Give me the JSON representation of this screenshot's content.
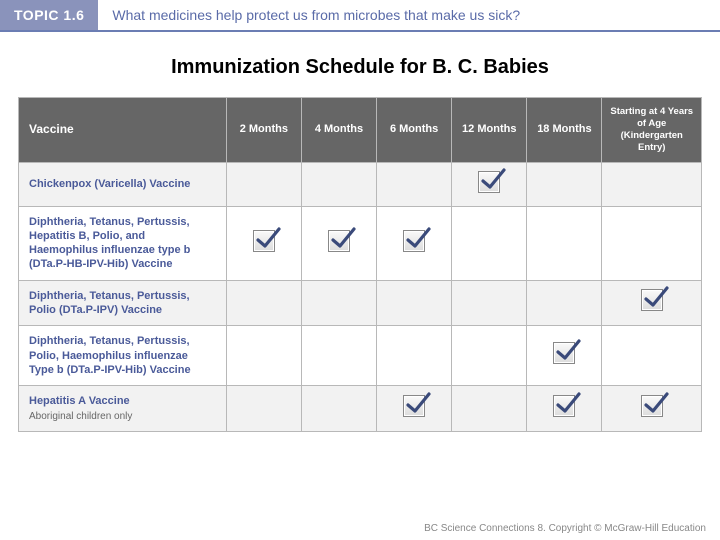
{
  "topic": {
    "badge": "TOPIC 1.6",
    "question": "What medicines help protect us from microbes that make us sick?"
  },
  "title": "Immunization Schedule for B. C. Babies",
  "columns": {
    "vaccine": "Vaccine",
    "m2": "2 Months",
    "m4": "4 Months",
    "m6": "6 Months",
    "m12": "12 Months",
    "m18": "18 Months",
    "kinder": "Starting at 4 Years of Age (Kindergarten Entry)"
  },
  "rows": [
    {
      "name": "Chickenpox (Varicella) Vaccine",
      "subnote": "",
      "checks": {
        "m2": false,
        "m4": false,
        "m6": false,
        "m12": true,
        "m18": false,
        "kinder": false
      }
    },
    {
      "name": "Diphtheria, Tetanus, Pertussis, Hepatitis B, Polio, and Haemophilus influenzae type b (DTa.P-HB-IPV-Hib) Vaccine",
      "subnote": "",
      "checks": {
        "m2": true,
        "m4": true,
        "m6": true,
        "m12": false,
        "m18": false,
        "kinder": false
      }
    },
    {
      "name": "Diphtheria, Tetanus, Pertussis, Polio (DTa.P-IPV) Vaccine",
      "subnote": "",
      "checks": {
        "m2": false,
        "m4": false,
        "m6": false,
        "m12": false,
        "m18": false,
        "kinder": true
      }
    },
    {
      "name": "Diphtheria, Tetanus, Pertussis, Polio, Haemophilus influenzae Type b (DTa.P-IPV-Hib) Vaccine",
      "subnote": "",
      "checks": {
        "m2": false,
        "m4": false,
        "m6": false,
        "m12": false,
        "m18": true,
        "kinder": false
      }
    },
    {
      "name": "Hepatitis A Vaccine",
      "subnote": "Aboriginal children only",
      "checks": {
        "m2": false,
        "m4": false,
        "m6": true,
        "m12": false,
        "m18": true,
        "kinder": true
      }
    }
  ],
  "footer": "BC Science Connections 8. Copyright © McGraw-Hill Education",
  "colors": {
    "topic_badge_bg": "#8a93bb",
    "topic_text": "#5a6ba8",
    "header_bg": "#666666",
    "vaccine_name": "#4a5a99",
    "row_even_bg": "#f2f2f2",
    "row_odd_bg": "#ffffff",
    "border": "#b8b8b8",
    "check_stroke": "#3a4a7a"
  }
}
